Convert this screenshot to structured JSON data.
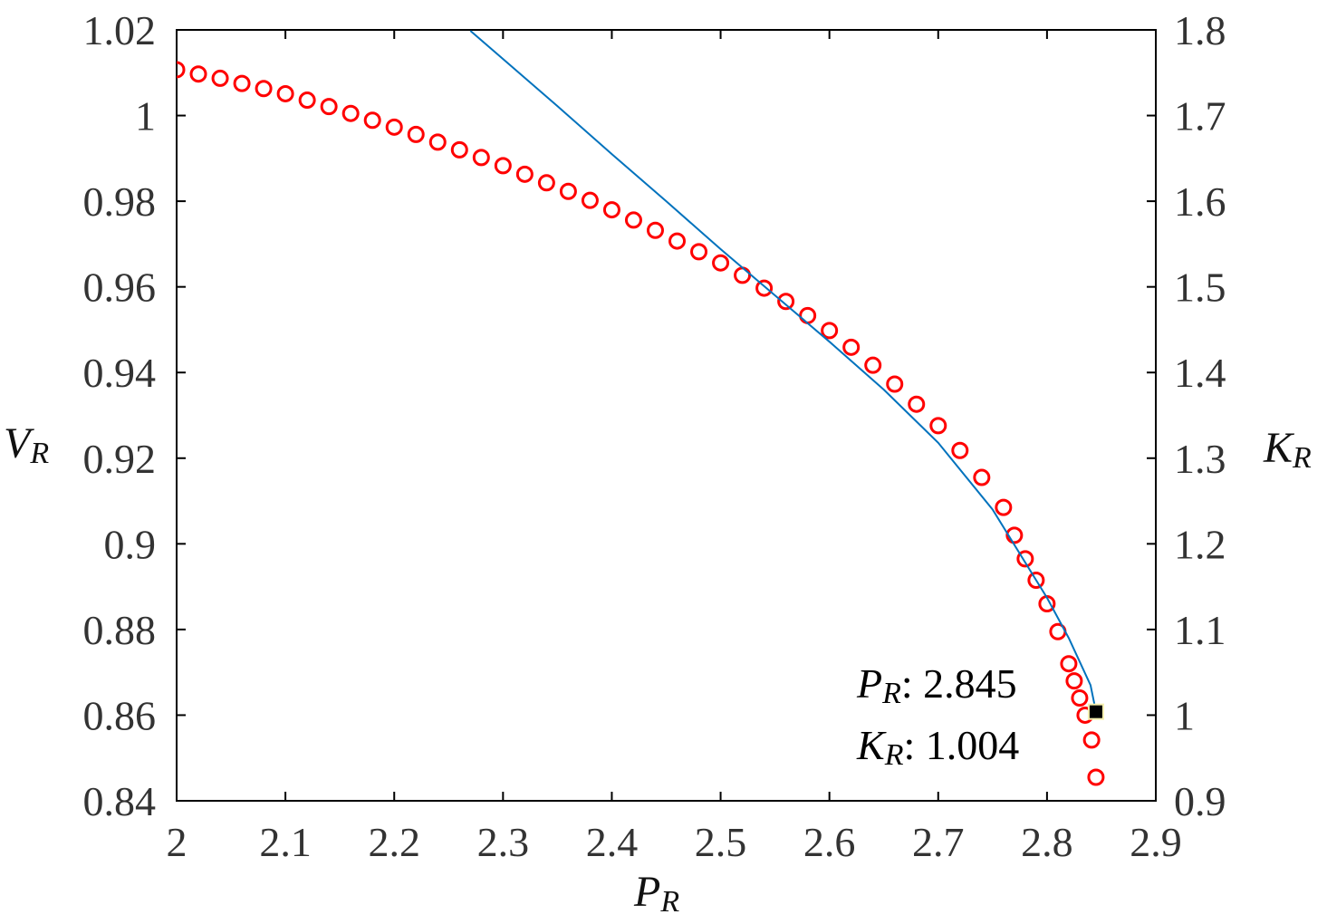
{
  "chart_data": {
    "type": "scatter-line",
    "xlabel": "P",
    "xlabel_subscript": "R",
    "ylabel": "V",
    "ylabel_subscript": "R",
    "y2label": "K",
    "y2label_subscript": "R",
    "xlim": [
      2,
      2.9
    ],
    "xticks": [
      2,
      2.1,
      2.2,
      2.3,
      2.4,
      2.5,
      2.6,
      2.7,
      2.8,
      2.9
    ],
    "ylim": [
      0.84,
      1.02
    ],
    "yticks": [
      0.84,
      0.86,
      0.88,
      0.9,
      0.92,
      0.94,
      0.96,
      0.98,
      1,
      1.02
    ],
    "y2lim": [
      0.9,
      1.8
    ],
    "y2ticks": [
      0.9,
      1,
      1.1,
      1.2,
      1.3,
      1.4,
      1.5,
      1.6,
      1.7,
      1.8
    ],
    "series": [
      {
        "kind": "markers",
        "color": "#ff0000",
        "x": [
          2.0,
          2.02,
          2.04,
          2.06,
          2.08,
          2.1,
          2.12,
          2.14,
          2.16,
          2.18,
          2.2,
          2.22,
          2.24,
          2.26,
          2.28,
          2.3,
          2.32,
          2.34,
          2.36,
          2.38,
          2.4,
          2.42,
          2.44,
          2.46,
          2.48,
          2.5,
          2.52,
          2.54,
          2.56,
          2.58,
          2.6,
          2.62,
          2.64,
          2.66,
          2.68,
          2.7,
          2.72,
          2.74,
          2.76,
          2.77,
          2.78,
          2.79,
          2.8,
          2.81,
          2.82,
          2.825,
          2.83,
          2.835,
          2.841,
          2.845
        ],
        "values": [
          1.0107,
          1.0097,
          1.0087,
          1.0075,
          1.0063,
          1.0051,
          1.0036,
          1.0021,
          1.0005,
          0.9989,
          0.9973,
          0.9956,
          0.9938,
          0.992,
          0.9902,
          0.9883,
          0.9863,
          0.9843,
          0.9823,
          0.9802,
          0.978,
          0.9756,
          0.9732,
          0.9707,
          0.9682,
          0.9656,
          0.9627,
          0.9597,
          0.9566,
          0.9533,
          0.9498,
          0.9459,
          0.9417,
          0.9373,
          0.9326,
          0.9276,
          0.9218,
          0.9155,
          0.9085,
          0.902,
          0.8965,
          0.8915,
          0.886,
          0.8795,
          0.872,
          0.868,
          0.864,
          0.86,
          0.8542,
          0.8455
        ]
      },
      {
        "kind": "line",
        "axis": "y2",
        "color": "#0072bd",
        "x": [
          2.27,
          2.3,
          2.35,
          2.4,
          2.45,
          2.5,
          2.55,
          2.6,
          2.65,
          2.7,
          2.75,
          2.8,
          2.82,
          2.84,
          2.845
        ],
        "values": [
          1.799,
          1.766,
          1.711,
          1.655,
          1.6,
          1.544,
          1.49,
          1.436,
          1.38,
          1.318,
          1.24,
          1.137,
          1.09,
          1.035,
          1.004
        ]
      }
    ],
    "datatip": {
      "x": 2.845,
      "y": 1.004,
      "x_symbol": "P",
      "x_subscript": "R",
      "y_symbol": "K",
      "y_subscript": "R",
      "separator": ": "
    }
  }
}
